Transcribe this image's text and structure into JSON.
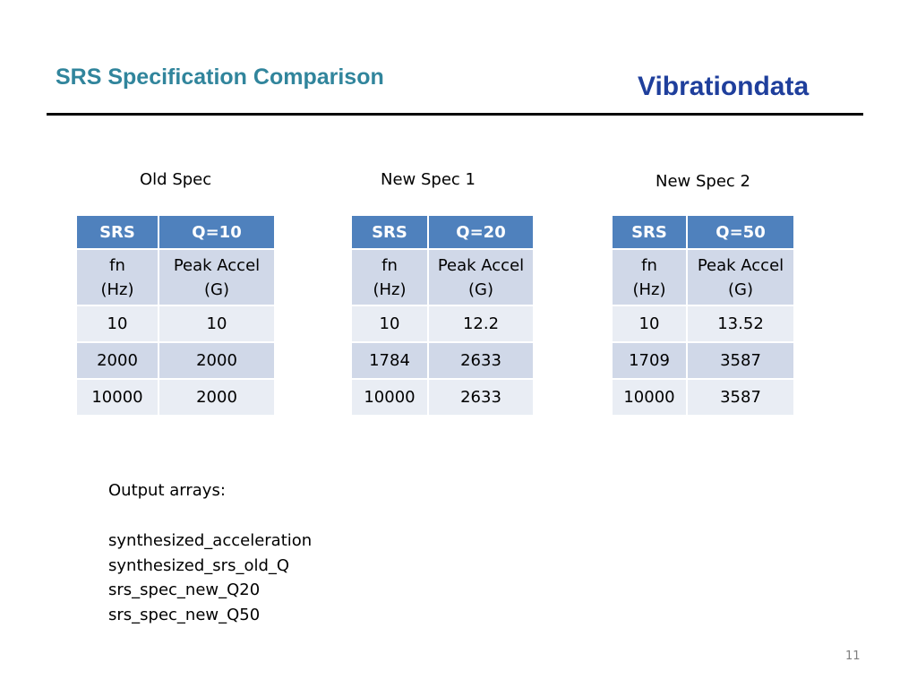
{
  "header": {
    "title": "SRS Specification Comparison",
    "brand": "Vibrationdata"
  },
  "specs": [
    {
      "label": "Old Spec",
      "columns": [
        "SRS",
        "Q=10"
      ],
      "subheader": [
        "fn (Hz)",
        "Peak Accel (G)"
      ],
      "rows": [
        [
          "10",
          "10"
        ],
        [
          "2000",
          "2000"
        ],
        [
          "10000",
          "2000"
        ]
      ]
    },
    {
      "label": "New Spec 1",
      "columns": [
        "SRS",
        "Q=20"
      ],
      "subheader": [
        "fn (Hz)",
        "Peak Accel (G)"
      ],
      "rows": [
        [
          "10",
          "12.2"
        ],
        [
          "1784",
          "2633"
        ],
        [
          "10000",
          "2633"
        ]
      ]
    },
    {
      "label": "New Spec 2",
      "columns": [
        "SRS",
        "Q=50"
      ],
      "subheader": [
        "fn (Hz)",
        "Peak Accel (G)"
      ],
      "rows": [
        [
          "10",
          "13.52"
        ],
        [
          "1709",
          "3587"
        ],
        [
          "10000",
          "3587"
        ]
      ]
    }
  ],
  "output": {
    "heading": "Output arrays:",
    "items": [
      "synthesized_acceleration",
      "synthesized_srs_old_Q",
      "srs_spec_new_Q20",
      "srs_spec_new_Q50"
    ]
  },
  "page_number": "11"
}
